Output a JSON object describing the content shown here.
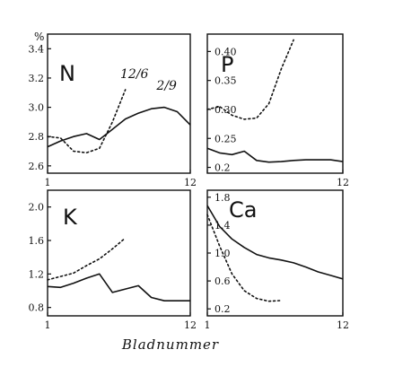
{
  "figure": {
    "y_unit": "%",
    "xlabel": "Bladnummer"
  },
  "chart_data": [
    {
      "type": "line",
      "panel": "N",
      "label": "N",
      "xlim": [
        1,
        12
      ],
      "ylim": [
        2.55,
        3.5
      ],
      "xticks": [
        "1",
        "12"
      ],
      "yticks": [
        2.6,
        2.8,
        3.0,
        3.2,
        3.4
      ],
      "ytick_labels": [
        "2.6",
        "2.8",
        "3.0",
        "3.2",
        "3.4"
      ],
      "annotations": [
        {
          "text": "12/6",
          "x": 6.6,
          "y": 3.2
        },
        {
          "text": "2/9",
          "x": 9.4,
          "y": 3.12
        }
      ],
      "series": [
        {
          "name": "2/9",
          "style": "solid",
          "x": [
            1,
            2,
            3,
            4,
            5,
            6,
            7,
            8,
            9,
            10,
            11,
            12
          ],
          "y": [
            2.73,
            2.77,
            2.8,
            2.82,
            2.78,
            2.85,
            2.92,
            2.96,
            2.99,
            3.0,
            2.97,
            2.88
          ]
        },
        {
          "name": "12/6",
          "style": "dotted",
          "x": [
            1,
            2,
            3,
            4,
            5,
            6,
            7
          ],
          "y": [
            2.8,
            2.79,
            2.7,
            2.69,
            2.72,
            2.9,
            3.12
          ]
        }
      ]
    },
    {
      "type": "line",
      "panel": "P",
      "label": "P",
      "xlim": [
        1,
        12
      ],
      "ylim": [
        0.19,
        0.43
      ],
      "xticks": [
        "",
        "12"
      ],
      "yticks": [
        0.2,
        0.25,
        0.3,
        0.35,
        0.4
      ],
      "ytick_labels": [
        "0.2",
        "0.25",
        "0.30",
        "0.35",
        "0.40"
      ],
      "series": [
        {
          "style": "solid",
          "x": [
            1,
            2,
            3,
            4,
            5,
            6,
            7,
            8,
            9,
            10,
            11,
            12
          ],
          "y": [
            0.233,
            0.225,
            0.222,
            0.228,
            0.212,
            0.209,
            0.21,
            0.212,
            0.213,
            0.213,
            0.213,
            0.21
          ]
        },
        {
          "style": "dotted",
          "x": [
            1,
            2,
            3,
            4,
            5,
            6,
            7,
            8
          ],
          "y": [
            0.3,
            0.305,
            0.29,
            0.283,
            0.285,
            0.31,
            0.37,
            0.42
          ]
        }
      ]
    },
    {
      "type": "line",
      "panel": "K",
      "label": "K",
      "xlim": [
        1,
        12
      ],
      "ylim": [
        0.7,
        2.2
      ],
      "xticks": [
        "1",
        "12"
      ],
      "yticks": [
        0.8,
        1.2,
        1.6,
        2.0
      ],
      "ytick_labels": [
        "0.8",
        "1.2",
        "1.6",
        "2.0"
      ],
      "series": [
        {
          "style": "solid",
          "x": [
            1,
            2,
            3,
            4,
            5,
            6,
            7,
            8,
            9,
            10,
            11,
            12
          ],
          "y": [
            1.05,
            1.04,
            1.09,
            1.15,
            1.2,
            0.98,
            1.02,
            1.06,
            0.92,
            0.88,
            0.88,
            0.88
          ]
        },
        {
          "style": "dotted",
          "x": [
            1,
            2,
            3,
            4,
            5,
            6,
            7
          ],
          "y": [
            1.13,
            1.17,
            1.21,
            1.3,
            1.38,
            1.5,
            1.63
          ]
        }
      ]
    },
    {
      "type": "line",
      "panel": "Ca",
      "label": "Ca",
      "xlim": [
        1,
        12
      ],
      "ylim": [
        0.1,
        1.9
      ],
      "xticks": [
        "1",
        "12"
      ],
      "yticks": [
        0.2,
        0.6,
        1.0,
        1.4,
        1.8
      ],
      "ytick_labels": [
        "0.2",
        "0.6",
        "1.0",
        "1.4",
        "1.8"
      ],
      "series": [
        {
          "style": "solid",
          "x": [
            1,
            2,
            3,
            4,
            5,
            6,
            7,
            8,
            9,
            10,
            11,
            12
          ],
          "y": [
            1.68,
            1.38,
            1.2,
            1.08,
            0.98,
            0.93,
            0.9,
            0.86,
            0.8,
            0.73,
            0.68,
            0.63
          ]
        },
        {
          "style": "dotted",
          "x": [
            1,
            2,
            3,
            4,
            5,
            6,
            7
          ],
          "y": [
            1.55,
            1.1,
            0.7,
            0.46,
            0.35,
            0.31,
            0.32
          ]
        }
      ]
    }
  ]
}
